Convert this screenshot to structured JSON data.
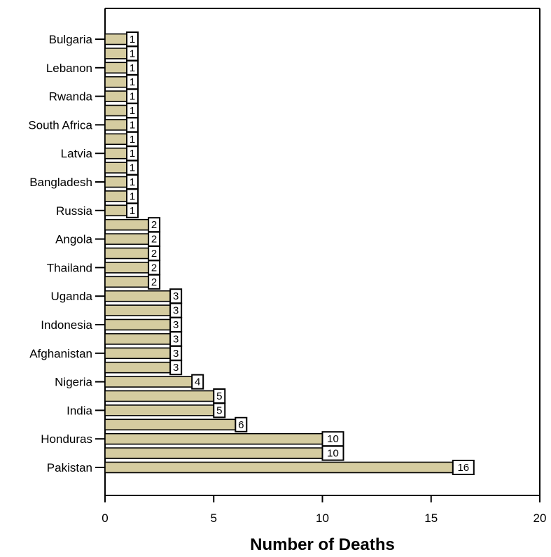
{
  "chart_data": {
    "type": "bar",
    "orientation": "horizontal",
    "title": "",
    "xlabel": "Number of Deaths",
    "ylabel": "",
    "xlim": [
      0,
      20
    ],
    "xticks": [
      0,
      5,
      10,
      15,
      20
    ],
    "grid": false,
    "legend": "none",
    "bar_color": "#d5cca0",
    "rows": [
      {
        "label": "Bulgaria",
        "value": 1
      },
      {
        "label": "",
        "value": 1
      },
      {
        "label": "Lebanon",
        "value": 1
      },
      {
        "label": "",
        "value": 1
      },
      {
        "label": "Rwanda",
        "value": 1
      },
      {
        "label": "",
        "value": 1
      },
      {
        "label": "South Africa",
        "value": 1
      },
      {
        "label": "",
        "value": 1
      },
      {
        "label": "Latvia",
        "value": 1
      },
      {
        "label": "",
        "value": 1
      },
      {
        "label": "Bangladesh",
        "value": 1
      },
      {
        "label": "",
        "value": 1
      },
      {
        "label": "Russia",
        "value": 1
      },
      {
        "label": "",
        "value": 2
      },
      {
        "label": "Angola",
        "value": 2
      },
      {
        "label": "",
        "value": 2
      },
      {
        "label": "Thailand",
        "value": 2
      },
      {
        "label": "",
        "value": 2
      },
      {
        "label": "Uganda",
        "value": 3
      },
      {
        "label": "",
        "value": 3
      },
      {
        "label": "Indonesia",
        "value": 3
      },
      {
        "label": "",
        "value": 3
      },
      {
        "label": "Afghanistan",
        "value": 3
      },
      {
        "label": "",
        "value": 3
      },
      {
        "label": "Nigeria",
        "value": 4
      },
      {
        "label": "",
        "value": 5
      },
      {
        "label": "India",
        "value": 5
      },
      {
        "label": "",
        "value": 6
      },
      {
        "label": "Honduras",
        "value": 10
      },
      {
        "label": "",
        "value": 10
      },
      {
        "label": "Pakistan",
        "value": 16
      }
    ]
  }
}
